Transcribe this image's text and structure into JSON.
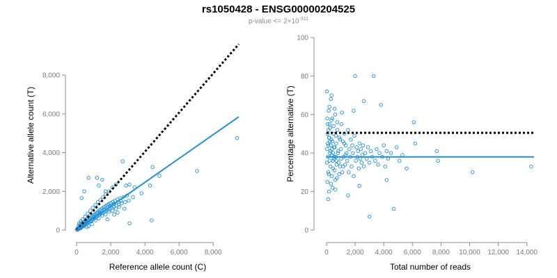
{
  "title": "rs1050428 - ENSG00000204525",
  "subtitle": {
    "prefix": "p-value <= 2×10",
    "exponent": "-311"
  },
  "colors": {
    "points": "#1f8fd6",
    "fit": "#1f8fd6",
    "reference": "#000000",
    "axis": "#8c8c8c",
    "ticks": "#7a7a7a"
  },
  "chart_data": [
    {
      "type": "scatter",
      "xlabel": "Reference allele count (C)",
      "ylabel": "Alternative allele count (T)",
      "xlim": [
        0,
        9500
      ],
      "ylim": [
        0,
        9800
      ],
      "xticks": [
        0,
        2000,
        4000,
        6000,
        8000
      ],
      "xtick_labels": [
        "0",
        "2,000",
        "4,000",
        "6,000",
        "8,000"
      ],
      "yticks": [
        0,
        2000,
        4000,
        6000,
        8000
      ],
      "ytick_labels": [
        "0",
        "2,000",
        "4,000",
        "6,000",
        "8,000"
      ],
      "grid": false,
      "lines": [
        {
          "name": "",
          "style": "dotted",
          "color": "#000000",
          "points": [
            [
              0,
              0
            ],
            [
              9500,
              9600
            ]
          ]
        },
        {
          "name": "",
          "style": "solid",
          "color": "#1f8fd6",
          "points": [
            [
              0,
              0
            ],
            [
              9500,
              5850
            ]
          ]
        }
      ],
      "points": [
        [
          20,
          30
        ],
        [
          40,
          10
        ],
        [
          60,
          70
        ],
        [
          80,
          40
        ],
        [
          100,
          90
        ],
        [
          120,
          60
        ],
        [
          150,
          110
        ],
        [
          170,
          80
        ],
        [
          200,
          140
        ],
        [
          220,
          90
        ],
        [
          250,
          170
        ],
        [
          280,
          130
        ],
        [
          300,
          210
        ],
        [
          330,
          160
        ],
        [
          360,
          240
        ],
        [
          400,
          200
        ],
        [
          420,
          290
        ],
        [
          450,
          250
        ],
        [
          480,
          350
        ],
        [
          500,
          280
        ],
        [
          540,
          380
        ],
        [
          560,
          310
        ],
        [
          600,
          420
        ],
        [
          630,
          360
        ],
        [
          660,
          480
        ],
        [
          700,
          400
        ],
        [
          720,
          540
        ],
        [
          760,
          430
        ],
        [
          800,
          600
        ],
        [
          830,
          470
        ],
        [
          860,
          650
        ],
        [
          900,
          520
        ],
        [
          930,
          700
        ],
        [
          960,
          560
        ],
        [
          1000,
          760
        ],
        [
          1040,
          600
        ],
        [
          1080,
          820
        ],
        [
          1120,
          650
        ],
        [
          1160,
          880
        ],
        [
          1200,
          700
        ],
        [
          1240,
          940
        ],
        [
          1280,
          760
        ],
        [
          1320,
          1000
        ],
        [
          1360,
          800
        ],
        [
          1400,
          1060
        ],
        [
          1450,
          860
        ],
        [
          1500,
          1120
        ],
        [
          1550,
          900
        ],
        [
          1600,
          1180
        ],
        [
          1650,
          950
        ],
        [
          1700,
          1240
        ],
        [
          1750,
          1000
        ],
        [
          1800,
          1300
        ],
        [
          1850,
          1050
        ],
        [
          1900,
          1350
        ],
        [
          1950,
          1100
        ],
        [
          2000,
          1400
        ],
        [
          2060,
          1150
        ],
        [
          2120,
          1460
        ],
        [
          2180,
          1200
        ],
        [
          2250,
          1520
        ],
        [
          2320,
          1260
        ],
        [
          2400,
          1580
        ],
        [
          2480,
          1320
        ],
        [
          2560,
          1640
        ],
        [
          2650,
          1380
        ],
        [
          2750,
          1700
        ],
        [
          2850,
          1450
        ],
        [
          2950,
          1780
        ],
        [
          3050,
          1520
        ],
        [
          150,
          350
        ],
        [
          250,
          450
        ],
        [
          350,
          550
        ],
        [
          500,
          700
        ],
        [
          650,
          850
        ],
        [
          800,
          1000
        ],
        [
          950,
          1150
        ],
        [
          1100,
          1300
        ],
        [
          1250,
          1450
        ],
        [
          1400,
          1550
        ],
        [
          1550,
          1700
        ],
        [
          1700,
          1850
        ],
        [
          1900,
          2000
        ],
        [
          2100,
          2200
        ],
        [
          2300,
          2350
        ],
        [
          2600,
          1500
        ],
        [
          2900,
          2300
        ],
        [
          3400,
          2200
        ],
        [
          3800,
          1900
        ],
        [
          4300,
          2300
        ],
        [
          700,
          200
        ],
        [
          900,
          300
        ],
        [
          1100,
          500
        ],
        [
          1300,
          600
        ],
        [
          1500,
          750
        ],
        [
          1700,
          800
        ],
        [
          1900,
          950
        ],
        [
          2100,
          1000
        ],
        [
          2300,
          1100
        ],
        [
          2500,
          1200
        ],
        [
          300,
          1650
        ],
        [
          450,
          2000
        ],
        [
          700,
          2700
        ],
        [
          1200,
          2700
        ],
        [
          1300,
          2300
        ],
        [
          1500,
          2600
        ],
        [
          1700,
          2000
        ],
        [
          2700,
          3550
        ],
        [
          3100,
          2350
        ],
        [
          3100,
          350
        ],
        [
          4450,
          3250
        ],
        [
          4850,
          2800
        ],
        [
          4400,
          500
        ],
        [
          7050,
          3050
        ],
        [
          9400,
          4750
        ],
        [
          1800,
          550
        ],
        [
          2200,
          800
        ],
        [
          2400,
          900
        ],
        [
          2800,
          1100
        ],
        [
          3300,
          1700
        ],
        [
          600,
          150
        ],
        [
          850,
          450
        ],
        [
          1000,
          650
        ],
        [
          1150,
          800
        ],
        [
          1350,
          900
        ],
        [
          1600,
          1050
        ],
        [
          1800,
          1150
        ],
        [
          2000,
          1250
        ],
        [
          2200,
          1350
        ],
        [
          2450,
          1450
        ],
        [
          110,
          200
        ],
        [
          180,
          260
        ],
        [
          260,
          320
        ],
        [
          320,
          380
        ],
        [
          380,
          300
        ],
        [
          440,
          410
        ],
        [
          520,
          500
        ],
        [
          580,
          460
        ],
        [
          640,
          560
        ],
        [
          740,
          640
        ]
      ]
    },
    {
      "type": "scatter",
      "xlabel": "Total number of reads",
      "ylabel": "Percentage alternative (T)",
      "xlim": [
        0,
        14500
      ],
      "ylim": [
        0,
        100
      ],
      "xticks": [
        0,
        2000,
        4000,
        6000,
        8000,
        10000,
        12000,
        14000
      ],
      "xtick_labels": [
        "0",
        "2,000",
        "4,000",
        "6,000",
        "8,000",
        "10,000",
        "12,000",
        "14,000"
      ],
      "yticks": [
        0,
        20,
        40,
        60,
        80,
        100
      ],
      "ytick_labels": [
        "0",
        "20",
        "40",
        "60",
        "80",
        "100"
      ],
      "grid": false,
      "lines": [
        {
          "name": "",
          "style": "dotted",
          "color": "#000000",
          "points": [
            [
              0,
              50.5
            ],
            [
              14500,
              50.5
            ]
          ]
        },
        {
          "name": "",
          "style": "solid",
          "color": "#1f8fd6",
          "points": [
            [
              0,
              38
            ],
            [
              14500,
              38
            ]
          ]
        }
      ],
      "points": [
        [
          30,
          72
        ],
        [
          60,
          25
        ],
        [
          90,
          45
        ],
        [
          120,
          30
        ],
        [
          150,
          62
        ],
        [
          180,
          20
        ],
        [
          210,
          55
        ],
        [
          240,
          40
        ],
        [
          270,
          33
        ],
        [
          300,
          68
        ],
        [
          330,
          47
        ],
        [
          360,
          28
        ],
        [
          400,
          58
        ],
        [
          440,
          36
        ],
        [
          480,
          50
        ],
        [
          520,
          43
        ],
        [
          560,
          31
        ],
        [
          600,
          60
        ],
        [
          640,
          38
        ],
        [
          680,
          45
        ],
        [
          720,
          27
        ],
        [
          760,
          52
        ],
        [
          800,
          40
        ],
        [
          850,
          35
        ],
        [
          900,
          48
        ],
        [
          950,
          33
        ],
        [
          1000,
          42
        ],
        [
          1050,
          55
        ],
        [
          1100,
          30
        ],
        [
          1150,
          46
        ],
        [
          1200,
          38
        ],
        [
          1250,
          50
        ],
        [
          1300,
          34
        ],
        [
          1350,
          44
        ],
        [
          1400,
          40
        ],
        [
          1450,
          36
        ],
        [
          1500,
          52
        ],
        [
          1550,
          30
        ],
        [
          1600,
          42
        ],
        [
          1650,
          38
        ],
        [
          1700,
          47
        ],
        [
          1750,
          33
        ],
        [
          1800,
          44
        ],
        [
          1850,
          40
        ],
        [
          1900,
          28
        ],
        [
          1950,
          49
        ],
        [
          2000,
          80
        ],
        [
          2050,
          36
        ],
        [
          2100,
          43
        ],
        [
          2150,
          38
        ],
        [
          2200,
          41
        ],
        [
          2250,
          32
        ],
        [
          2300,
          45
        ],
        [
          2350,
          37
        ],
        [
          2400,
          42
        ],
        [
          2450,
          35
        ],
        [
          2500,
          39
        ],
        [
          2550,
          44
        ],
        [
          2600,
          33
        ],
        [
          2700,
          40
        ],
        [
          2800,
          37
        ],
        [
          2900,
          43
        ],
        [
          3000,
          35
        ],
        [
          3100,
          41
        ],
        [
          3200,
          38
        ],
        [
          3300,
          80
        ],
        [
          3400,
          36
        ],
        [
          3500,
          42
        ],
        [
          3600,
          34
        ],
        [
          3700,
          40
        ],
        [
          3800,
          65
        ],
        [
          3900,
          38
        ],
        [
          4000,
          44
        ],
        [
          4100,
          33
        ],
        [
          4200,
          41
        ],
        [
          4300,
          37
        ],
        [
          4500,
          40
        ],
        [
          4700,
          11
        ],
        [
          4900,
          43
        ],
        [
          5100,
          36
        ],
        [
          5300,
          39
        ],
        [
          5600,
          32
        ],
        [
          6100,
          56
        ],
        [
          6200,
          45
        ],
        [
          7700,
          41
        ],
        [
          7800,
          36
        ],
        [
          10200,
          30
        ],
        [
          14300,
          33
        ],
        [
          3000,
          7
        ],
        [
          2600,
          67
        ],
        [
          20,
          35
        ],
        [
          40,
          42
        ],
        [
          70,
          50
        ],
        [
          100,
          38
        ],
        [
          130,
          44
        ],
        [
          160,
          29
        ],
        [
          190,
          48
        ],
        [
          220,
          36
        ],
        [
          250,
          53
        ],
        [
          280,
          41
        ],
        [
          310,
          24
        ],
        [
          340,
          57
        ],
        [
          370,
          39
        ],
        [
          410,
          46
        ],
        [
          450,
          32
        ],
        [
          490,
          54
        ],
        [
          530,
          37
        ],
        [
          570,
          43
        ],
        [
          610,
          26
        ],
        [
          650,
          49
        ],
        [
          700,
          34
        ],
        [
          750,
          56
        ],
        [
          820,
          41
        ],
        [
          880,
          29
        ],
        [
          940,
          47
        ],
        [
          1020,
          37
        ],
        [
          1080,
          61
        ],
        [
          1160,
          33
        ],
        [
          1240,
          45
        ],
        [
          1320,
          39
        ],
        [
          110,
          16
        ],
        [
          200,
          64
        ],
        [
          350,
          70
        ],
        [
          420,
          22
        ],
        [
          560,
          63
        ],
        [
          620,
          21
        ],
        [
          1500,
          18
        ],
        [
          1900,
          62
        ],
        [
          2300,
          23
        ],
        [
          4200,
          26
        ],
        [
          50,
          58
        ],
        [
          80,
          55
        ],
        [
          140,
          52
        ],
        [
          170,
          48
        ],
        [
          230,
          46
        ],
        [
          290,
          44
        ],
        [
          380,
          42
        ],
        [
          460,
          40
        ],
        [
          540,
          38
        ],
        [
          700,
          36
        ]
      ]
    }
  ]
}
